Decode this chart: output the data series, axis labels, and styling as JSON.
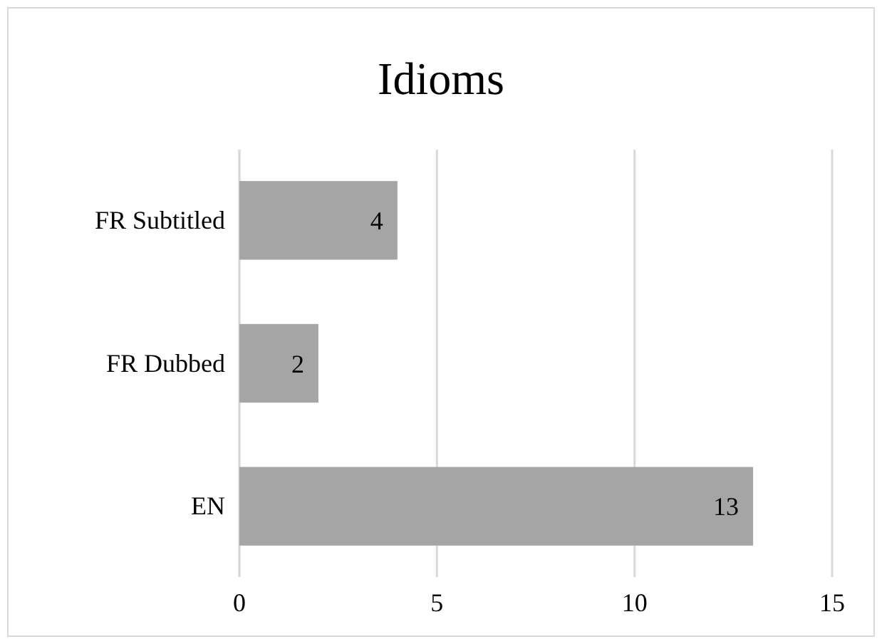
{
  "chart_data": {
    "type": "bar",
    "title": "Idioms",
    "orientation": "horizontal",
    "categories": [
      "FR Subtitled",
      "FR Dubbed",
      "EN"
    ],
    "values": [
      4,
      2,
      13
    ],
    "color": "#a5a5a5",
    "xlim": [
      0,
      15
    ],
    "xticks": [
      0,
      5,
      10,
      15
    ],
    "grid": "x",
    "data_labels": true
  }
}
